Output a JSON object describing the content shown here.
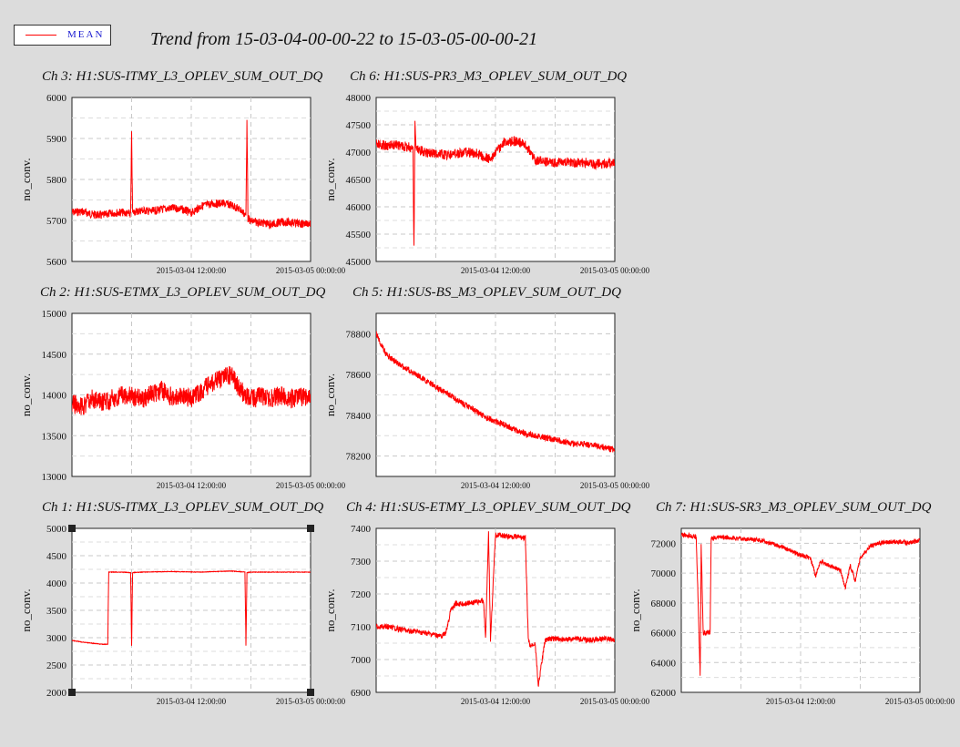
{
  "legend": {
    "label": "MEAN",
    "color": "#ff0000"
  },
  "title": "Trend from 15-03-04-00-00-22 to 15-03-05-00-00-21",
  "chart_data": [
    {
      "type": "line",
      "title": "Ch 3: H1:SUS-ITMY_L3_OPLEV_SUM_OUT_DQ",
      "ylabel": "no_conv.",
      "ylim": [
        5600,
        6000
      ],
      "yticks": [
        5600,
        5700,
        5800,
        5900,
        6000
      ],
      "xlim": [
        0,
        24
      ],
      "xtick_labels": [
        {
          "x": 12,
          "label": "2015-03-04 12:00:00"
        },
        {
          "x": 24,
          "label": "2015-03-05 00:00:00"
        }
      ],
      "x": [
        0,
        1,
        2,
        3,
        4,
        5,
        5.9,
        6,
        6.1,
        7,
        8,
        9,
        10,
        11,
        12,
        13,
        14,
        15,
        16,
        17,
        17.5,
        17.6,
        17.7,
        18,
        19,
        20,
        21,
        22,
        23,
        24
      ],
      "y": [
        5720,
        5722,
        5715,
        5712,
        5718,
        5720,
        5715,
        5910,
        5720,
        5725,
        5722,
        5727,
        5730,
        5728,
        5718,
        5735,
        5740,
        5742,
        5738,
        5725,
        5712,
        5950,
        5705,
        5698,
        5695,
        5690,
        5696,
        5695,
        5692,
        5693
      ],
      "noise": 10,
      "grid": true
    },
    {
      "type": "line",
      "title": "Ch 6: H1:SUS-PR3_M3_OPLEV_SUM_OUT_DQ",
      "ylabel": "no_conv.",
      "ylim": [
        45000,
        48000
      ],
      "yticks": [
        45000,
        45500,
        46000,
        46500,
        47000,
        47500,
        48000
      ],
      "xlim": [
        0,
        24
      ],
      "xtick_labels": [
        {
          "x": 12,
          "label": "2015-03-04 12:00:00"
        },
        {
          "x": 24,
          "label": "2015-03-05 00:00:00"
        }
      ],
      "x": [
        0,
        1,
        2,
        3,
        3.7,
        3.8,
        3.9,
        4,
        5,
        6,
        7,
        8,
        9,
        10,
        11,
        11.5,
        12,
        13,
        14,
        15,
        16,
        17,
        18,
        19,
        20,
        21,
        22,
        23,
        24
      ],
      "y": [
        47150,
        47120,
        47130,
        47100,
        47080,
        45200,
        47600,
        47050,
        47000,
        46980,
        46950,
        46980,
        47000,
        46980,
        46900,
        46880,
        47000,
        47200,
        47200,
        47150,
        46850,
        46830,
        46800,
        46820,
        46800,
        46810,
        46780,
        46790,
        46800
      ],
      "noise": 90,
      "grid": true
    },
    {
      "type": "line",
      "title": "Ch 2: H1:SUS-ETMX_L3_OPLEV_SUM_OUT_DQ",
      "ylabel": "no_conv.",
      "ylim": [
        13000,
        15000
      ],
      "yticks": [
        13000,
        13500,
        14000,
        14500,
        15000
      ],
      "xlim": [
        0,
        24
      ],
      "xtick_labels": [
        {
          "x": 12,
          "label": "2015-03-04 12:00:00"
        },
        {
          "x": 24,
          "label": "2015-03-05 00:00:00"
        }
      ],
      "x": [
        0,
        1,
        2,
        3,
        4,
        5,
        6,
        7,
        8,
        9,
        10,
        11,
        12,
        13,
        14,
        15,
        16,
        17,
        18,
        19,
        20,
        21,
        22,
        23,
        24
      ],
      "y": [
        13900,
        13850,
        13950,
        13900,
        13950,
        14000,
        13980,
        13950,
        14000,
        14050,
        13980,
        14000,
        13950,
        14050,
        14150,
        14200,
        14250,
        14050,
        13950,
        13980,
        13950,
        14000,
        13950,
        13980,
        13950
      ],
      "noise": 120,
      "grid": true
    },
    {
      "type": "line",
      "title": "Ch 5: H1:SUS-BS_M3_OPLEV_SUM_OUT_DQ",
      "ylabel": "no_conv.",
      "ylim": [
        78100,
        78900
      ],
      "yticks": [
        78200,
        78400,
        78600,
        78800
      ],
      "xlim": [
        0,
        24
      ],
      "xtick_labels": [
        {
          "x": 12,
          "label": "2015-03-04 12:00:00"
        },
        {
          "x": 24,
          "label": "2015-03-05 00:00:00"
        }
      ],
      "x": [
        0,
        1,
        2,
        3,
        4,
        5,
        6,
        7,
        8,
        9,
        10,
        11,
        12,
        13,
        14,
        15,
        16,
        17,
        18,
        19,
        20,
        21,
        22,
        23,
        24
      ],
      "y": [
        78800,
        78700,
        78660,
        78630,
        78600,
        78570,
        78540,
        78510,
        78480,
        78450,
        78420,
        78390,
        78370,
        78350,
        78330,
        78310,
        78300,
        78290,
        78280,
        78270,
        78260,
        78260,
        78250,
        78240,
        78230
      ],
      "noise": 15,
      "grid": true
    },
    {
      "type": "line",
      "title": "Ch 1: H1:SUS-ITMX_L3_OPLEV_SUM_OUT_DQ",
      "ylabel": "no_conv.",
      "ylim": [
        2000,
        5000
      ],
      "yticks": [
        2000,
        2500,
        3000,
        3500,
        4000,
        4500,
        5000
      ],
      "xlim": [
        0,
        24
      ],
      "xtick_labels": [
        {
          "x": 12,
          "label": "2015-03-04 12:00:00"
        },
        {
          "x": 24,
          "label": "2015-03-05 00:00:00"
        }
      ],
      "x": [
        0,
        1,
        2,
        3,
        3.6,
        3.7,
        5,
        5.9,
        6,
        6.1,
        7,
        10,
        13,
        16,
        17.4,
        17.5,
        17.6,
        18,
        20,
        24
      ],
      "y": [
        2950,
        2920,
        2900,
        2880,
        2880,
        4200,
        4200,
        4190,
        2850,
        4190,
        4200,
        4210,
        4200,
        4220,
        4200,
        2850,
        4190,
        4200,
        4200,
        4200
      ],
      "noise": 5,
      "grid": true
    },
    {
      "type": "line",
      "title": "Ch 4: H1:SUS-ETMY_L3_OPLEV_SUM_OUT_DQ",
      "ylabel": "no_conv.",
      "ylim": [
        6900,
        7400
      ],
      "yticks": [
        6900,
        7000,
        7100,
        7200,
        7300,
        7400
      ],
      "xlim": [
        0,
        24
      ],
      "xtick_labels": [
        {
          "x": 12,
          "label": "2015-03-04 12:00:00"
        },
        {
          "x": 24,
          "label": "2015-03-05 00:00:00"
        }
      ],
      "x": [
        0,
        1,
        2,
        3,
        4,
        5,
        6,
        6.5,
        7,
        7.5,
        8,
        9,
        10,
        10.8,
        11,
        11.3,
        11.5,
        12,
        12.5,
        13,
        14,
        15,
        15.3,
        15.5,
        16,
        16.3,
        17,
        18,
        19,
        20,
        21,
        22,
        23,
        24
      ],
      "y": [
        7100,
        7100,
        7095,
        7090,
        7085,
        7080,
        7075,
        7070,
        7080,
        7150,
        7170,
        7170,
        7175,
        7180,
        7065,
        7390,
        7060,
        7380,
        7380,
        7375,
        7375,
        7370,
        7060,
        7040,
        7050,
        6920,
        7060,
        7065,
        7060,
        7065,
        7060,
        7060,
        7065,
        7060
      ],
      "noise": 8,
      "grid": true
    },
    {
      "type": "line",
      "title": "Ch 7: H1:SUS-SR3_M3_OPLEV_SUM_OUT_DQ",
      "ylabel": "no_conv.",
      "ylim": [
        62000,
        73000
      ],
      "yticks": [
        62000,
        64000,
        66000,
        68000,
        70000,
        72000
      ],
      "xlim": [
        0,
        24
      ],
      "xtick_labels": [
        {
          "x": 12,
          "label": "2015-03-04 12:00:00"
        },
        {
          "x": 24,
          "label": "2015-03-05 00:00:00"
        }
      ],
      "x": [
        0,
        1,
        1.5,
        1.7,
        1.9,
        2,
        2.2,
        2.5,
        2.9,
        3,
        3.5,
        4,
        6,
        8,
        9,
        10,
        11,
        12,
        13,
        13.5,
        14,
        15,
        16,
        16.5,
        17,
        17.5,
        18,
        19,
        20,
        21,
        22,
        23,
        24
      ],
      "y": [
        72600,
        72500,
        72400,
        68000,
        63000,
        72000,
        66000,
        66000,
        66000,
        72300,
        72400,
        72400,
        72300,
        72200,
        72000,
        71800,
        71500,
        71200,
        71000,
        69800,
        70800,
        70500,
        70200,
        69000,
        70500,
        69500,
        71000,
        71800,
        72000,
        72100,
        72100,
        72000,
        72200
      ],
      "noise": 150,
      "grid": true
    }
  ]
}
